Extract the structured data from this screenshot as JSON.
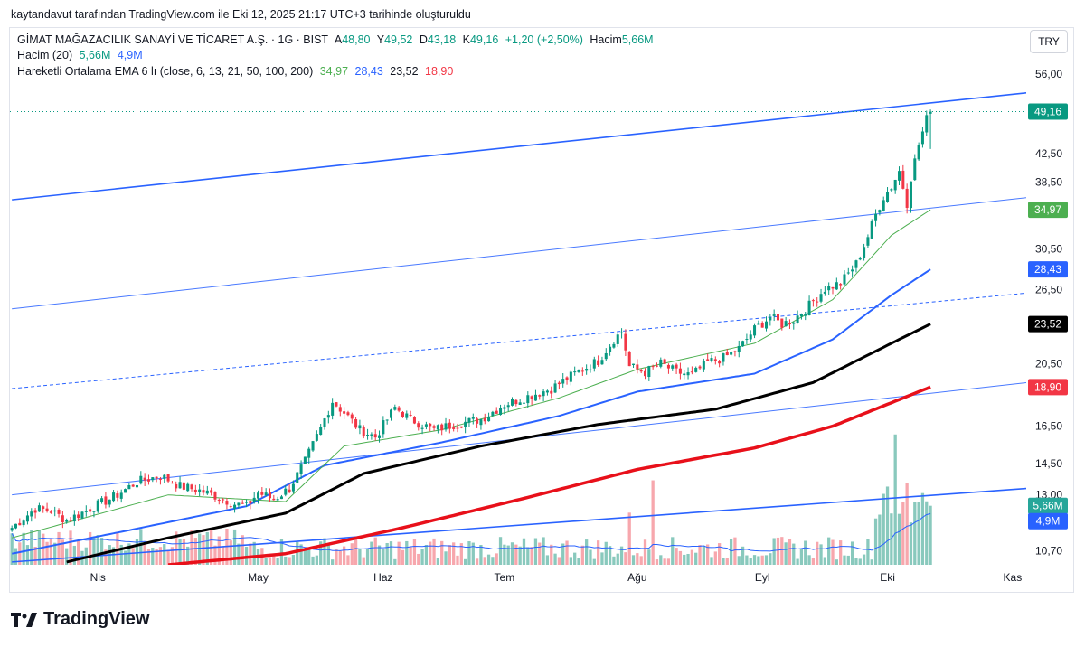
{
  "header": {
    "title": "kaytandavut tarafından TradingView.com ile Eki 12, 2025 21:17 UTC+3 tarihinde oluşturuldu"
  },
  "legend": {
    "symbol": "GİMAT MAĞAZACILIK SANAYİ VE TİCARET A.Ş. · 1G · BIST",
    "open_label": "A",
    "open": "48,80",
    "high_label": "Y",
    "high": "49,52",
    "low_label": "D",
    "low": "43,18",
    "close_label": "K",
    "close": "49,16",
    "change": "+1,20 (+2,50%)",
    "volume_label": "Hacim",
    "volume": "5,66M",
    "volume_ma_label": "Hacim (20)",
    "volume_ma_value1": "5,66M",
    "volume_ma_value2": "4,9M",
    "ema_label": "Hareketli Ortalama EMA 6 lı (close, 6, 13, 21, 50, 100, 200)",
    "ema_values": [
      "34,97",
      "28,43",
      "23,52",
      "18,90"
    ]
  },
  "currency": "TRY",
  "brand": "TradingView",
  "colors": {
    "up": "#089981",
    "down": "#f23645",
    "ema_green": "#4caf50",
    "ema_blue": "#2962ff",
    "ema_black": "#000000",
    "ema_red": "#e8101a",
    "trend_blue": "#2962ff",
    "vol_up": "#89c9bd",
    "vol_down": "#f7a7ad"
  },
  "chart_data": {
    "type": "candlestick",
    "title": "GİMAT MAĞAZACILIK SANAYİ VE TİCARET A.Ş. · 1G · BIST",
    "y_scale": "log",
    "ylim": [
      10.2,
      60
    ],
    "y_ticks": [
      "56,00",
      "42,50",
      "38,50",
      "30,50",
      "26,50",
      "20,50",
      "16,50",
      "14,50",
      "13,00",
      "10,70"
    ],
    "y_tick_values": [
      56,
      42.5,
      38.5,
      30.5,
      26.5,
      20.5,
      16.5,
      14.5,
      13,
      10.7
    ],
    "x_labels": [
      "Nis",
      "May",
      "Haz",
      "Tem",
      "Ağu",
      "Eyl",
      "Eki",
      "Kas"
    ],
    "x_label_index": [
      22,
      63,
      95,
      126,
      160,
      192,
      224,
      256
    ],
    "bars_total_axis": 260,
    "key_points": [
      {
        "i": 0,
        "c": 11.6
      },
      {
        "i": 6,
        "c": 12.4
      },
      {
        "i": 10,
        "c": 12.3
      },
      {
        "i": 14,
        "c": 11.9
      },
      {
        "i": 20,
        "c": 12.4
      },
      {
        "i": 26,
        "c": 12.9
      },
      {
        "i": 32,
        "c": 13.6
      },
      {
        "i": 38,
        "c": 13.9
      },
      {
        "i": 43,
        "c": 13.4
      },
      {
        "i": 48,
        "c": 13.2
      },
      {
        "i": 53,
        "c": 12.9
      },
      {
        "i": 57,
        "c": 12.6
      },
      {
        "i": 60,
        "c": 12.5
      },
      {
        "i": 63,
        "c": 13.1
      },
      {
        "i": 67,
        "c": 12.8
      },
      {
        "i": 71,
        "c": 13.3
      },
      {
        "i": 75,
        "c": 14.6
      },
      {
        "i": 79,
        "c": 16.4
      },
      {
        "i": 82,
        "c": 18.0
      },
      {
        "i": 85,
        "c": 17.3
      },
      {
        "i": 89,
        "c": 16.3
      },
      {
        "i": 93,
        "c": 15.9
      },
      {
        "i": 98,
        "c": 17.6
      },
      {
        "i": 102,
        "c": 16.9
      },
      {
        "i": 108,
        "c": 16.3
      },
      {
        "i": 113,
        "c": 16.6
      },
      {
        "i": 120,
        "c": 16.9
      },
      {
        "i": 126,
        "c": 17.8
      },
      {
        "i": 132,
        "c": 18.3
      },
      {
        "i": 138,
        "c": 18.8
      },
      {
        "i": 144,
        "c": 19.8
      },
      {
        "i": 150,
        "c": 20.7
      },
      {
        "i": 154,
        "c": 22.3
      },
      {
        "i": 156,
        "c": 22.9
      },
      {
        "i": 158,
        "c": 20.3
      },
      {
        "i": 162,
        "c": 19.9
      },
      {
        "i": 166,
        "c": 20.5
      },
      {
        "i": 170,
        "c": 19.9
      },
      {
        "i": 174,
        "c": 19.7
      },
      {
        "i": 178,
        "c": 20.6
      },
      {
        "i": 182,
        "c": 20.9
      },
      {
        "i": 186,
        "c": 21.6
      },
      {
        "i": 190,
        "c": 23.1
      },
      {
        "i": 194,
        "c": 24.1
      },
      {
        "i": 197,
        "c": 23.5
      },
      {
        "i": 200,
        "c": 23.9
      },
      {
        "i": 204,
        "c": 25.1
      },
      {
        "i": 208,
        "c": 26.6
      },
      {
        "i": 212,
        "c": 27.1
      },
      {
        "i": 216,
        "c": 29.0
      },
      {
        "i": 219,
        "c": 31.9
      },
      {
        "i": 221,
        "c": 34.4
      },
      {
        "i": 223,
        "c": 36.6
      },
      {
        "i": 225,
        "c": 37.9
      },
      {
        "i": 227,
        "c": 40.0
      },
      {
        "i": 229,
        "c": 35.8
      },
      {
        "i": 230,
        "c": 39.2
      },
      {
        "i": 232,
        "c": 43.8
      },
      {
        "i": 234,
        "c": 47.9
      },
      {
        "i": 235,
        "c": 49.16
      }
    ],
    "last_bar": {
      "open": 48.8,
      "high": 49.52,
      "low": 43.18,
      "close": 49.16
    },
    "ema_6_21_50_200": {
      "ema_fast_green": [
        [
          0,
          11.2
        ],
        [
          40,
          13.0
        ],
        [
          70,
          12.7
        ],
        [
          85,
          15.4
        ],
        [
          110,
          16.3
        ],
        [
          140,
          18.2
        ],
        [
          160,
          20.1
        ],
        [
          190,
          22.0
        ],
        [
          210,
          25.6
        ],
        [
          225,
          32.0
        ],
        [
          235,
          34.97
        ]
      ],
      "ema_blue": [
        [
          0,
          10.6
        ],
        [
          30,
          11.5
        ],
        [
          60,
          12.5
        ],
        [
          80,
          14.4
        ],
        [
          110,
          15.6
        ],
        [
          140,
          17.1
        ],
        [
          160,
          18.6
        ],
        [
          190,
          19.8
        ],
        [
          210,
          22.3
        ],
        [
          225,
          26.0
        ],
        [
          235,
          28.43
        ]
      ],
      "ema_black": [
        [
          14,
          10.3
        ],
        [
          40,
          11.2
        ],
        [
          70,
          12.2
        ],
        [
          90,
          14.0
        ],
        [
          120,
          15.4
        ],
        [
          150,
          16.6
        ],
        [
          180,
          17.5
        ],
        [
          205,
          19.2
        ],
        [
          225,
          22.0
        ],
        [
          235,
          23.52
        ]
      ],
      "ema_red": [
        [
          40,
          10.2
        ],
        [
          70,
          10.6
        ],
        [
          100,
          11.6
        ],
        [
          130,
          12.8
        ],
        [
          160,
          14.2
        ],
        [
          190,
          15.3
        ],
        [
          210,
          16.5
        ],
        [
          225,
          17.9
        ],
        [
          235,
          18.9
        ]
      ]
    },
    "trend_lines": [
      {
        "style": "solid",
        "from": [
          0,
          36.2
        ],
        "to": [
          260,
          52.5
        ]
      },
      {
        "style": "thin",
        "from": [
          0,
          24.8
        ],
        "to": [
          260,
          36.5
        ]
      },
      {
        "style": "dashed",
        "from": [
          0,
          18.8
        ],
        "to": [
          260,
          26.2
        ]
      },
      {
        "style": "thin",
        "from": [
          0,
          13.0
        ],
        "to": [
          260,
          19.2
        ]
      },
      {
        "style": "solid",
        "from": [
          0,
          10.3
        ],
        "to": [
          260,
          13.3
        ]
      }
    ],
    "volume": {
      "last": "5,66M",
      "ma": "4,9M",
      "spikes": [
        {
          "i": 158,
          "v": 5.0
        },
        {
          "i": 164,
          "v": 8.1
        },
        {
          "i": 226,
          "v": 12.5
        },
        {
          "i": 224,
          "v": 7.5
        },
        {
          "i": 229,
          "v": 7.8
        }
      ],
      "axis_max_millions": 13
    },
    "price_labels": [
      {
        "text": "49,16",
        "value": 49.16,
        "color": "#089981"
      },
      {
        "text": "34,97",
        "value": 34.97,
        "color": "#4caf50"
      },
      {
        "text": "28,43",
        "value": 28.43,
        "color": "#2962ff"
      },
      {
        "text": "23,52",
        "value": 23.52,
        "color": "#000000"
      },
      {
        "text": "18,90",
        "value": 18.9,
        "color": "#f23645"
      },
      {
        "text": "5,66M",
        "value": 5.66,
        "color": "#26a69a",
        "pane": "volume"
      },
      {
        "text": "4,9M",
        "value": 4.9,
        "color": "#2962ff",
        "pane": "volume"
      }
    ]
  }
}
